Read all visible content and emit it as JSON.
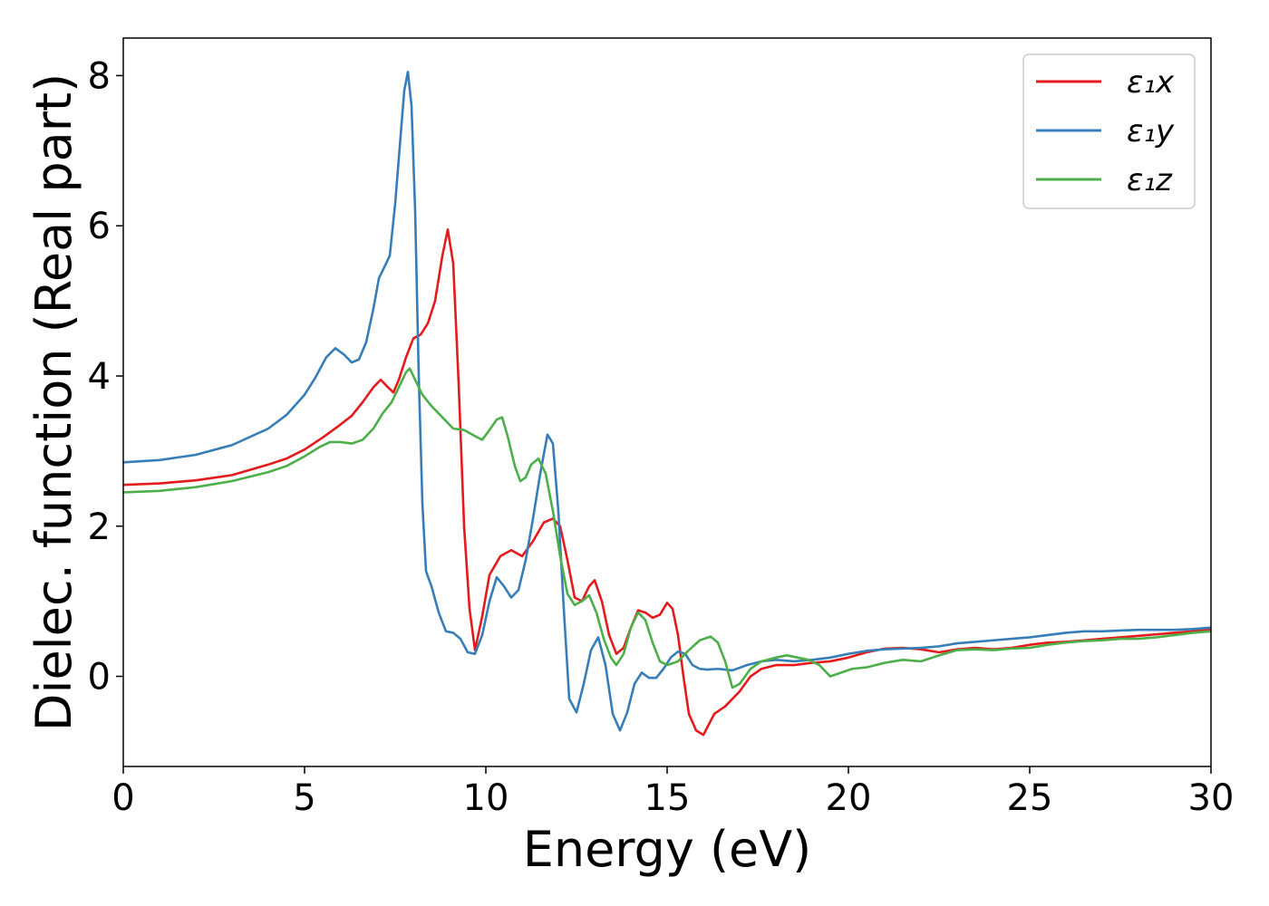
{
  "chart_data": {
    "type": "line",
    "title": "",
    "xlabel": "Energy (eV)",
    "ylabel": "Dielec. function (Real part)",
    "xlim": [
      0,
      30
    ],
    "ylim": [
      -1.2,
      8.5
    ],
    "xticks": [
      0,
      5,
      10,
      15,
      20,
      25,
      30
    ],
    "yticks": [
      0,
      2,
      4,
      6,
      8
    ],
    "grid": false,
    "legend_position": "top-right",
    "series": [
      {
        "name": "ε₁x",
        "color": "#e41a1c",
        "x": [
          0,
          1,
          2,
          3,
          4,
          4.5,
          5,
          5.5,
          5.9,
          6.3,
          6.6,
          6.9,
          7.1,
          7.3,
          7.45,
          7.6,
          7.8,
          8.0,
          8.2,
          8.4,
          8.6,
          8.8,
          8.95,
          9.1,
          9.25,
          9.4,
          9.55,
          9.7,
          9.9,
          10.1,
          10.4,
          10.7,
          11.0,
          11.3,
          11.6,
          11.85,
          12.05,
          12.25,
          12.45,
          12.65,
          12.85,
          13.0,
          13.2,
          13.4,
          13.6,
          13.8,
          14.0,
          14.2,
          14.4,
          14.6,
          14.8,
          15.0,
          15.15,
          15.3,
          15.45,
          15.6,
          15.8,
          16.0,
          16.3,
          16.6,
          17.0,
          17.3,
          17.6,
          18.0,
          18.5,
          19.0,
          19.5,
          20.0,
          20.5,
          21.0,
          21.5,
          22.0,
          22.5,
          23.0,
          23.5,
          24.0,
          24.5,
          25.0,
          25.5,
          26.0,
          26.5,
          27.0,
          27.5,
          28.0,
          28.5,
          29.0,
          29.5,
          30.0
        ],
        "y": [
          2.55,
          2.57,
          2.61,
          2.68,
          2.82,
          2.9,
          3.02,
          3.18,
          3.32,
          3.47,
          3.65,
          3.85,
          3.95,
          3.85,
          3.78,
          3.95,
          4.25,
          4.5,
          4.55,
          4.7,
          5.0,
          5.6,
          5.95,
          5.5,
          3.9,
          2.0,
          0.9,
          0.35,
          0.8,
          1.35,
          1.6,
          1.68,
          1.6,
          1.8,
          2.05,
          2.1,
          2.0,
          1.55,
          1.05,
          1.0,
          1.2,
          1.28,
          1.0,
          0.55,
          0.3,
          0.38,
          0.65,
          0.88,
          0.85,
          0.78,
          0.82,
          0.98,
          0.9,
          0.55,
          0.0,
          -0.5,
          -0.72,
          -0.78,
          -0.5,
          -0.4,
          -0.2,
          0.0,
          0.1,
          0.15,
          0.15,
          0.18,
          0.2,
          0.25,
          0.32,
          0.37,
          0.38,
          0.36,
          0.32,
          0.36,
          0.38,
          0.36,
          0.38,
          0.42,
          0.45,
          0.46,
          0.48,
          0.5,
          0.52,
          0.54,
          0.56,
          0.58,
          0.6,
          0.62
        ]
      },
      {
        "name": "ε₁y",
        "color": "#377eb8",
        "x": [
          0,
          1,
          2,
          3,
          4,
          4.5,
          5,
          5.3,
          5.6,
          5.85,
          6.1,
          6.3,
          6.5,
          6.7,
          6.9,
          7.05,
          7.2,
          7.35,
          7.5,
          7.65,
          7.75,
          7.85,
          7.95,
          8.05,
          8.15,
          8.25,
          8.35,
          8.5,
          8.7,
          8.9,
          9.1,
          9.3,
          9.5,
          9.7,
          9.9,
          10.1,
          10.3,
          10.5,
          10.7,
          10.9,
          11.1,
          11.3,
          11.5,
          11.7,
          11.85,
          12.0,
          12.15,
          12.3,
          12.5,
          12.7,
          12.9,
          13.1,
          13.3,
          13.5,
          13.7,
          13.9,
          14.1,
          14.3,
          14.5,
          14.7,
          14.9,
          15.1,
          15.3,
          15.5,
          15.7,
          15.9,
          16.1,
          16.4,
          16.8,
          17.2,
          17.6,
          18.0,
          18.5,
          19.0,
          19.5,
          20.0,
          20.5,
          21.0,
          21.5,
          22.0,
          22.5,
          23.0,
          23.5,
          24.0,
          24.5,
          25.0,
          25.5,
          26.0,
          26.5,
          27.0,
          27.5,
          28.0,
          28.5,
          29.0,
          29.5,
          30.0
        ],
        "y": [
          2.85,
          2.88,
          2.95,
          3.08,
          3.3,
          3.48,
          3.75,
          3.98,
          4.25,
          4.37,
          4.28,
          4.18,
          4.22,
          4.45,
          4.9,
          5.3,
          5.45,
          5.6,
          6.3,
          7.2,
          7.8,
          8.05,
          7.6,
          6.2,
          4.0,
          2.3,
          1.4,
          1.2,
          0.85,
          0.6,
          0.58,
          0.5,
          0.32,
          0.3,
          0.55,
          1.0,
          1.32,
          1.2,
          1.05,
          1.15,
          1.55,
          2.1,
          2.7,
          3.22,
          3.1,
          2.2,
          0.9,
          -0.3,
          -0.48,
          -0.1,
          0.35,
          0.52,
          0.15,
          -0.5,
          -0.72,
          -0.48,
          -0.1,
          0.05,
          -0.02,
          -0.02,
          0.1,
          0.25,
          0.33,
          0.3,
          0.15,
          0.1,
          0.09,
          0.1,
          0.08,
          0.15,
          0.2,
          0.22,
          0.2,
          0.22,
          0.25,
          0.3,
          0.34,
          0.36,
          0.37,
          0.38,
          0.4,
          0.44,
          0.46,
          0.48,
          0.5,
          0.52,
          0.55,
          0.58,
          0.6,
          0.6,
          0.61,
          0.62,
          0.62,
          0.62,
          0.63,
          0.65
        ]
      },
      {
        "name": "ε₁z",
        "color": "#4daf4a",
        "x": [
          0,
          1,
          2,
          3,
          4,
          4.5,
          5,
          5.4,
          5.7,
          6.0,
          6.3,
          6.6,
          6.9,
          7.15,
          7.4,
          7.6,
          7.8,
          7.9,
          8.05,
          8.25,
          8.5,
          8.8,
          9.1,
          9.4,
          9.7,
          9.9,
          10.1,
          10.3,
          10.45,
          10.6,
          10.8,
          10.95,
          11.1,
          11.25,
          11.45,
          11.65,
          11.85,
          12.05,
          12.25,
          12.45,
          12.65,
          12.85,
          13.05,
          13.25,
          13.45,
          13.6,
          13.8,
          14.0,
          14.2,
          14.4,
          14.6,
          14.8,
          15.0,
          15.3,
          15.6,
          15.9,
          16.2,
          16.4,
          16.6,
          16.8,
          17.0,
          17.3,
          17.6,
          18.0,
          18.3,
          18.6,
          18.9,
          19.2,
          19.5,
          19.8,
          20.1,
          20.5,
          21.0,
          21.5,
          22.0,
          22.5,
          23.0,
          23.5,
          24.0,
          24.5,
          25.0,
          25.5,
          26.0,
          26.5,
          27.0,
          27.5,
          28.0,
          28.5,
          29.0,
          29.5,
          30.0
        ],
        "y": [
          2.45,
          2.47,
          2.52,
          2.6,
          2.72,
          2.8,
          2.93,
          3.05,
          3.12,
          3.12,
          3.1,
          3.15,
          3.3,
          3.5,
          3.65,
          3.85,
          4.05,
          4.1,
          3.95,
          3.75,
          3.6,
          3.45,
          3.3,
          3.28,
          3.2,
          3.15,
          3.28,
          3.42,
          3.45,
          3.2,
          2.8,
          2.6,
          2.65,
          2.82,
          2.9,
          2.7,
          2.2,
          1.6,
          1.1,
          0.95,
          1.0,
          1.08,
          0.85,
          0.5,
          0.25,
          0.15,
          0.3,
          0.65,
          0.85,
          0.75,
          0.45,
          0.2,
          0.15,
          0.2,
          0.35,
          0.48,
          0.53,
          0.45,
          0.2,
          -0.15,
          -0.1,
          0.1,
          0.2,
          0.25,
          0.28,
          0.25,
          0.22,
          0.15,
          0.0,
          0.05,
          0.1,
          0.12,
          0.18,
          0.22,
          0.2,
          0.28,
          0.35,
          0.36,
          0.35,
          0.37,
          0.38,
          0.42,
          0.45,
          0.47,
          0.48,
          0.5,
          0.5,
          0.52,
          0.55,
          0.58,
          0.6
        ]
      }
    ]
  }
}
